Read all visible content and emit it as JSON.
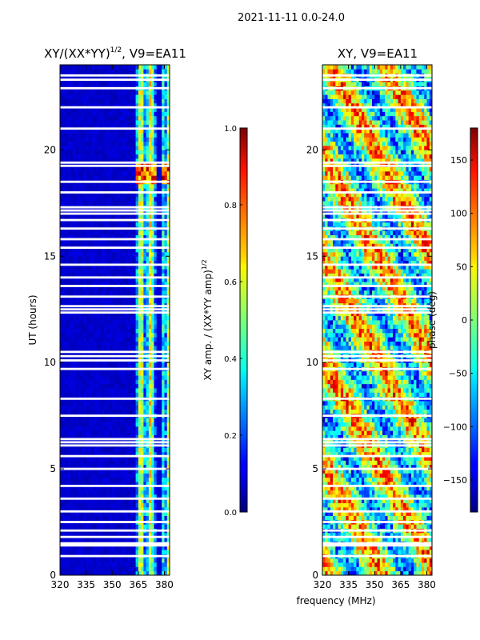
{
  "figure": {
    "suptitle": "2021-11-11 0.0-24.0",
    "xlabel": "frequency (MHz)"
  },
  "chart_data": [
    {
      "type": "heatmap",
      "title": "XY/(XX*YY)",
      "title_sup": "1/2",
      "title_suffix": ", V9=EA11",
      "xlabel": "",
      "ylabel": "UT (hours)",
      "xlim": [
        320,
        383
      ],
      "ylim": [
        0,
        24
      ],
      "xticks": [
        320,
        335,
        350,
        365,
        380
      ],
      "yticks": [
        0,
        5,
        10,
        15,
        20
      ],
      "colorbar": {
        "label": "XY amp. / (XX*YY amp)",
        "label_sup": "1/2",
        "range": [
          0.0,
          1.0
        ],
        "ticks": [
          "0.0",
          "0.2",
          "0.4",
          "0.6",
          "0.8",
          "1.0"
        ],
        "tick_values": [
          0.0,
          0.2,
          0.4,
          0.6,
          0.8,
          1.0
        ]
      },
      "data_gaps_hours": [
        0.9,
        1.4,
        1.5,
        1.8,
        2.1,
        2.5,
        3.0,
        3.6,
        4.2,
        5.0,
        5.6,
        6.1,
        6.25,
        6.4,
        7.5,
        8.3,
        9.7,
        10.1,
        10.3,
        10.5,
        12.35,
        12.5,
        12.65,
        13.1,
        13.6,
        14.0,
        14.6,
        15.4,
        15.8,
        16.3,
        16.7,
        17.0,
        17.15,
        17.3,
        18.0,
        18.5,
        19.25,
        19.4,
        21.0,
        22.0,
        22.9,
        23.3,
        23.5
      ]
    },
    {
      "type": "heatmap",
      "title": "XY, V9=EA11",
      "xlabel": "frequency (MHz)",
      "ylabel": "",
      "xlim": [
        320,
        383
      ],
      "ylim": [
        0,
        24
      ],
      "xticks": [
        320,
        335,
        350,
        365,
        380
      ],
      "yticks": [
        0,
        5,
        10,
        15,
        20
      ],
      "colorbar": {
        "label": "phase (deg)",
        "range": [
          -180,
          180
        ],
        "ticks": [
          "−150",
          "−100",
          "−50",
          "0",
          "50",
          "100",
          "150"
        ],
        "tick_values": [
          -150,
          -100,
          -50,
          0,
          50,
          100,
          150
        ]
      },
      "data_gaps_hours": [
        0.9,
        1.4,
        1.5,
        1.8,
        2.1,
        2.5,
        3.0,
        3.6,
        4.2,
        5.0,
        5.6,
        6.1,
        6.25,
        6.4,
        7.5,
        8.3,
        9.7,
        10.1,
        10.3,
        10.5,
        12.35,
        12.5,
        12.65,
        13.1,
        13.6,
        14.0,
        14.6,
        15.4,
        15.8,
        16.3,
        16.7,
        17.0,
        17.15,
        17.3,
        18.0,
        18.5,
        19.25,
        19.4,
        21.0,
        22.0,
        22.9,
        23.3,
        23.5
      ]
    }
  ]
}
